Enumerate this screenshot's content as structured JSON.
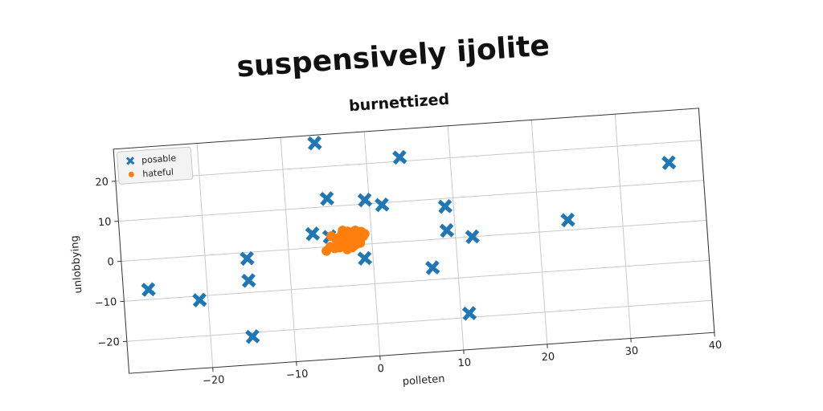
{
  "chart_data": {
    "type": "scatter",
    "title": "suspensively ijolite",
    "subtitle": "burnettized",
    "xlabel": "polleten",
    "ylabel": "unlobbying",
    "xlim": [
      -30,
      40
    ],
    "ylim": [
      -28,
      28
    ],
    "xticks": [
      -20,
      -10,
      0,
      10,
      20,
      30,
      40
    ],
    "yticks": [
      -20,
      -10,
      0,
      10,
      20
    ],
    "grid": true,
    "legend_position": "top-left",
    "series": [
      {
        "name": "posable",
        "marker": "x",
        "color": "#1f77b4",
        "points": [
          [
            -6,
            26
          ],
          [
            4,
            21
          ],
          [
            -5,
            12
          ],
          [
            -0.5,
            11
          ],
          [
            1.5,
            9.5
          ],
          [
            9,
            8
          ],
          [
            36,
            15
          ],
          [
            -7,
            3.5
          ],
          [
            -5,
            2.5
          ],
          [
            9,
            2
          ],
          [
            12,
            0
          ],
          [
            23.5,
            2.5
          ],
          [
            -15,
            -1.5
          ],
          [
            -1,
            -3.5
          ],
          [
            7,
            -7
          ],
          [
            -15,
            -7
          ],
          [
            -27,
            -7.5
          ],
          [
            -21,
            -11
          ],
          [
            11,
            -19
          ],
          [
            -15,
            -21
          ]
        ]
      },
      {
        "name": "hateful",
        "marker": "o",
        "color": "#ff7f0e",
        "points": [
          [
            -4,
            1
          ],
          [
            -3.5,
            3
          ],
          [
            -3,
            0.5
          ],
          [
            -2.5,
            2.5
          ],
          [
            -2,
            1.5
          ],
          [
            -1.5,
            3
          ],
          [
            -1,
            2
          ],
          [
            -4.5,
            -0.5
          ],
          [
            -3,
            -1
          ],
          [
            -2,
            0
          ],
          [
            -3.8,
            2.2
          ],
          [
            -2.8,
            3.5
          ],
          [
            -1.8,
            0.8
          ],
          [
            -4.2,
            1.8
          ],
          [
            -3.2,
            -0.2
          ],
          [
            -2.2,
            2.8
          ],
          [
            -1.2,
            3.2
          ],
          [
            -5,
            0
          ],
          [
            -3.6,
            0.8
          ],
          [
            -2.6,
            1.2
          ],
          [
            -1.6,
            1.9
          ],
          [
            -4.8,
            2.6
          ],
          [
            -2.4,
            -0.6
          ],
          [
            -1.4,
            0.4
          ],
          [
            -3.4,
            3.8
          ],
          [
            -5.5,
            -1
          ],
          [
            -0.8,
            2.6
          ],
          [
            -2.9,
            1.6
          ],
          [
            -3.9,
            -0.4
          ],
          [
            -1.9,
            3.6
          ]
        ]
      }
    ]
  }
}
